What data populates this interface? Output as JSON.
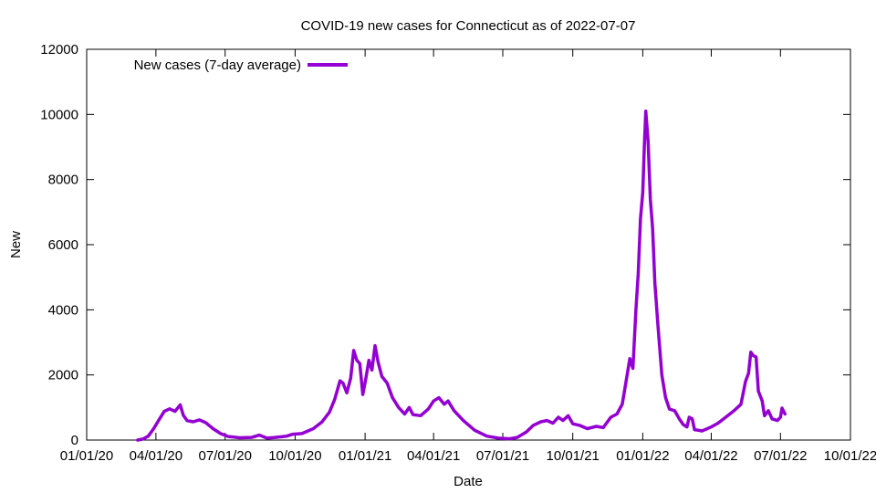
{
  "chart_data": {
    "type": "line",
    "title": "COVID-19 new cases for Connecticut as of 2022-07-07",
    "xlabel": "Date",
    "ylabel": "New",
    "xlim": [
      "2020-01-01",
      "2022-10-01"
    ],
    "ylim": [
      0,
      12000
    ],
    "x_ticks": [
      "01/01/20",
      "04/01/20",
      "07/01/20",
      "10/01/20",
      "01/01/21",
      "04/01/21",
      "07/01/21",
      "10/01/21",
      "01/01/22",
      "04/01/22",
      "07/01/22",
      "10/01/22"
    ],
    "y_ticks": [
      "0",
      "2000",
      "4000",
      "6000",
      "8000",
      "10000",
      "12000"
    ],
    "legend_position": "top-left",
    "grid": false,
    "series": [
      {
        "name": "New cases (7-day average)",
        "color": "#9400d3",
        "points": [
          [
            "2020-03-08",
            0
          ],
          [
            "2020-03-15",
            30
          ],
          [
            "2020-03-22",
            120
          ],
          [
            "2020-03-29",
            350
          ],
          [
            "2020-04-05",
            620
          ],
          [
            "2020-04-12",
            880
          ],
          [
            "2020-04-19",
            960
          ],
          [
            "2020-04-26",
            880
          ],
          [
            "2020-05-03",
            1080
          ],
          [
            "2020-05-07",
            760
          ],
          [
            "2020-05-12",
            600
          ],
          [
            "2020-05-20",
            560
          ],
          [
            "2020-05-28",
            620
          ],
          [
            "2020-06-05",
            540
          ],
          [
            "2020-06-15",
            350
          ],
          [
            "2020-06-25",
            200
          ],
          [
            "2020-07-05",
            110
          ],
          [
            "2020-07-20",
            70
          ],
          [
            "2020-08-05",
            80
          ],
          [
            "2020-08-15",
            150
          ],
          [
            "2020-08-25",
            60
          ],
          [
            "2020-09-05",
            80
          ],
          [
            "2020-09-20",
            120
          ],
          [
            "2020-09-28",
            180
          ],
          [
            "2020-10-10",
            200
          ],
          [
            "2020-10-25",
            350
          ],
          [
            "2020-11-05",
            550
          ],
          [
            "2020-11-15",
            850
          ],
          [
            "2020-11-22",
            1250
          ],
          [
            "2020-11-29",
            1820
          ],
          [
            "2020-12-03",
            1750
          ],
          [
            "2020-12-08",
            1450
          ],
          [
            "2020-12-13",
            1900
          ],
          [
            "2020-12-17",
            2750
          ],
          [
            "2020-12-21",
            2450
          ],
          [
            "2020-12-25",
            2350
          ],
          [
            "2020-12-29",
            1400
          ],
          [
            "2021-01-02",
            1900
          ],
          [
            "2021-01-06",
            2450
          ],
          [
            "2021-01-10",
            2150
          ],
          [
            "2021-01-14",
            2900
          ],
          [
            "2021-01-18",
            2400
          ],
          [
            "2021-01-23",
            1950
          ],
          [
            "2021-01-30",
            1750
          ],
          [
            "2021-02-06",
            1300
          ],
          [
            "2021-02-14",
            1000
          ],
          [
            "2021-02-22",
            800
          ],
          [
            "2021-02-28",
            1000
          ],
          [
            "2021-03-05",
            780
          ],
          [
            "2021-03-15",
            750
          ],
          [
            "2021-03-25",
            950
          ],
          [
            "2021-04-01",
            1200
          ],
          [
            "2021-04-08",
            1300
          ],
          [
            "2021-04-15",
            1100
          ],
          [
            "2021-04-20",
            1200
          ],
          [
            "2021-04-28",
            900
          ],
          [
            "2021-05-10",
            600
          ],
          [
            "2021-05-25",
            300
          ],
          [
            "2021-06-10",
            120
          ],
          [
            "2021-06-25",
            60
          ],
          [
            "2021-07-10",
            40
          ],
          [
            "2021-07-20",
            80
          ],
          [
            "2021-08-01",
            250
          ],
          [
            "2021-08-10",
            450
          ],
          [
            "2021-08-20",
            560
          ],
          [
            "2021-08-28",
            600
          ],
          [
            "2021-09-05",
            520
          ],
          [
            "2021-09-12",
            700
          ],
          [
            "2021-09-18",
            600
          ],
          [
            "2021-09-25",
            750
          ],
          [
            "2021-10-01",
            500
          ],
          [
            "2021-10-10",
            450
          ],
          [
            "2021-10-20",
            350
          ],
          [
            "2021-11-01",
            420
          ],
          [
            "2021-11-10",
            380
          ],
          [
            "2021-11-20",
            700
          ],
          [
            "2021-11-28",
            800
          ],
          [
            "2021-12-05",
            1100
          ],
          [
            "2021-12-10",
            1800
          ],
          [
            "2021-12-15",
            2500
          ],
          [
            "2021-12-19",
            2200
          ],
          [
            "2021-12-23",
            4000
          ],
          [
            "2021-12-26",
            5100
          ],
          [
            "2021-12-29",
            6800
          ],
          [
            "2022-01-01",
            7600
          ],
          [
            "2022-01-03",
            9000
          ],
          [
            "2022-01-05",
            10100
          ],
          [
            "2022-01-08",
            9200
          ],
          [
            "2022-01-11",
            7400
          ],
          [
            "2022-01-14",
            6500
          ],
          [
            "2022-01-17",
            4800
          ],
          [
            "2022-01-21",
            3500
          ],
          [
            "2022-01-26",
            2000
          ],
          [
            "2022-01-31",
            1300
          ],
          [
            "2022-02-05",
            950
          ],
          [
            "2022-02-12",
            900
          ],
          [
            "2022-02-18",
            650
          ],
          [
            "2022-02-23",
            480
          ],
          [
            "2022-02-28",
            400
          ],
          [
            "2022-03-03",
            700
          ],
          [
            "2022-03-07",
            650
          ],
          [
            "2022-03-10",
            320
          ],
          [
            "2022-03-20",
            280
          ],
          [
            "2022-04-01",
            400
          ],
          [
            "2022-04-10",
            520
          ],
          [
            "2022-04-20",
            700
          ],
          [
            "2022-05-01",
            900
          ],
          [
            "2022-05-10",
            1100
          ],
          [
            "2022-05-16",
            1800
          ],
          [
            "2022-05-20",
            2050
          ],
          [
            "2022-05-23",
            2700
          ],
          [
            "2022-05-26",
            2600
          ],
          [
            "2022-05-30",
            2550
          ],
          [
            "2022-06-02",
            1500
          ],
          [
            "2022-06-07",
            1200
          ],
          [
            "2022-06-10",
            750
          ],
          [
            "2022-06-15",
            900
          ],
          [
            "2022-06-20",
            650
          ],
          [
            "2022-06-27",
            600
          ],
          [
            "2022-07-01",
            700
          ],
          [
            "2022-07-03",
            980
          ],
          [
            "2022-07-07",
            800
          ]
        ]
      }
    ]
  }
}
